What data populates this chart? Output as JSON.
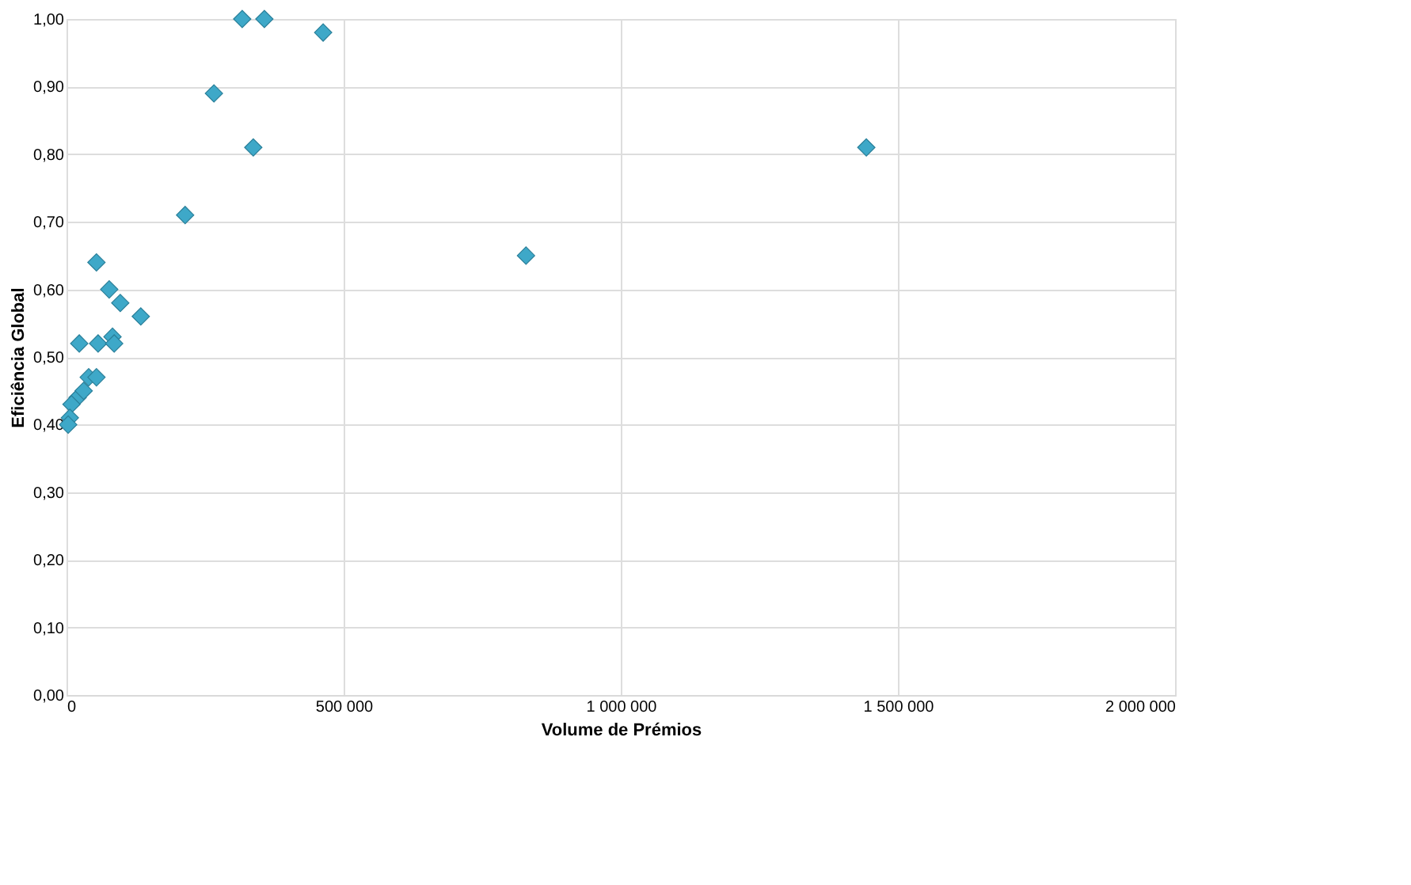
{
  "chart_data": {
    "type": "scatter",
    "xlabel": "Volume de Prémios",
    "ylabel": "Eficiência Global",
    "x": [
      317000,
      357000,
      463000,
      266000,
      337000,
      1443000,
      829000,
      214000,
      54000,
      77000,
      97000,
      134000,
      23000,
      57000,
      83000,
      86000,
      40000,
      54000,
      20000,
      9000,
      6000,
      3000,
      31000
    ],
    "series": [
      {
        "color": "#3ea8c8",
        "values": [
          1.0,
          1.0,
          0.98,
          0.89,
          0.81,
          0.81,
          0.65,
          0.71,
          0.64,
          0.6,
          0.58,
          0.56,
          0.52,
          0.52,
          0.53,
          0.52,
          0.47,
          0.47,
          0.44,
          0.43,
          0.41,
          0.4,
          0.45
        ]
      }
    ],
    "xlim": [
      0,
      2000000
    ],
    "xticks": [
      {
        "value": 0,
        "label": "0"
      },
      {
        "value": 500000,
        "label": "500 000"
      },
      {
        "value": 1000000,
        "label": "1 000 000"
      },
      {
        "value": 1500000,
        "label": "1 500 000"
      },
      {
        "value": 2000000,
        "label": "2 000 000"
      }
    ],
    "ylim": [
      0,
      1
    ],
    "yticks": [
      {
        "value": 0,
        "label": "0,00"
      },
      {
        "value": 0.1,
        "label": "0,10"
      },
      {
        "value": 0.2,
        "label": "0,20"
      },
      {
        "value": 0.3,
        "label": "0,30"
      },
      {
        "value": 0.4,
        "label": "0,40"
      },
      {
        "value": 0.5,
        "label": "0,50"
      },
      {
        "value": 0.6,
        "label": "0,60"
      },
      {
        "value": 0.7,
        "label": "0,70"
      },
      {
        "value": 0.8,
        "label": "0,80"
      },
      {
        "value": 0.9,
        "label": "0,90"
      },
      {
        "value": 1,
        "label": "1,00"
      }
    ],
    "grid": true,
    "marker": "diamond"
  }
}
